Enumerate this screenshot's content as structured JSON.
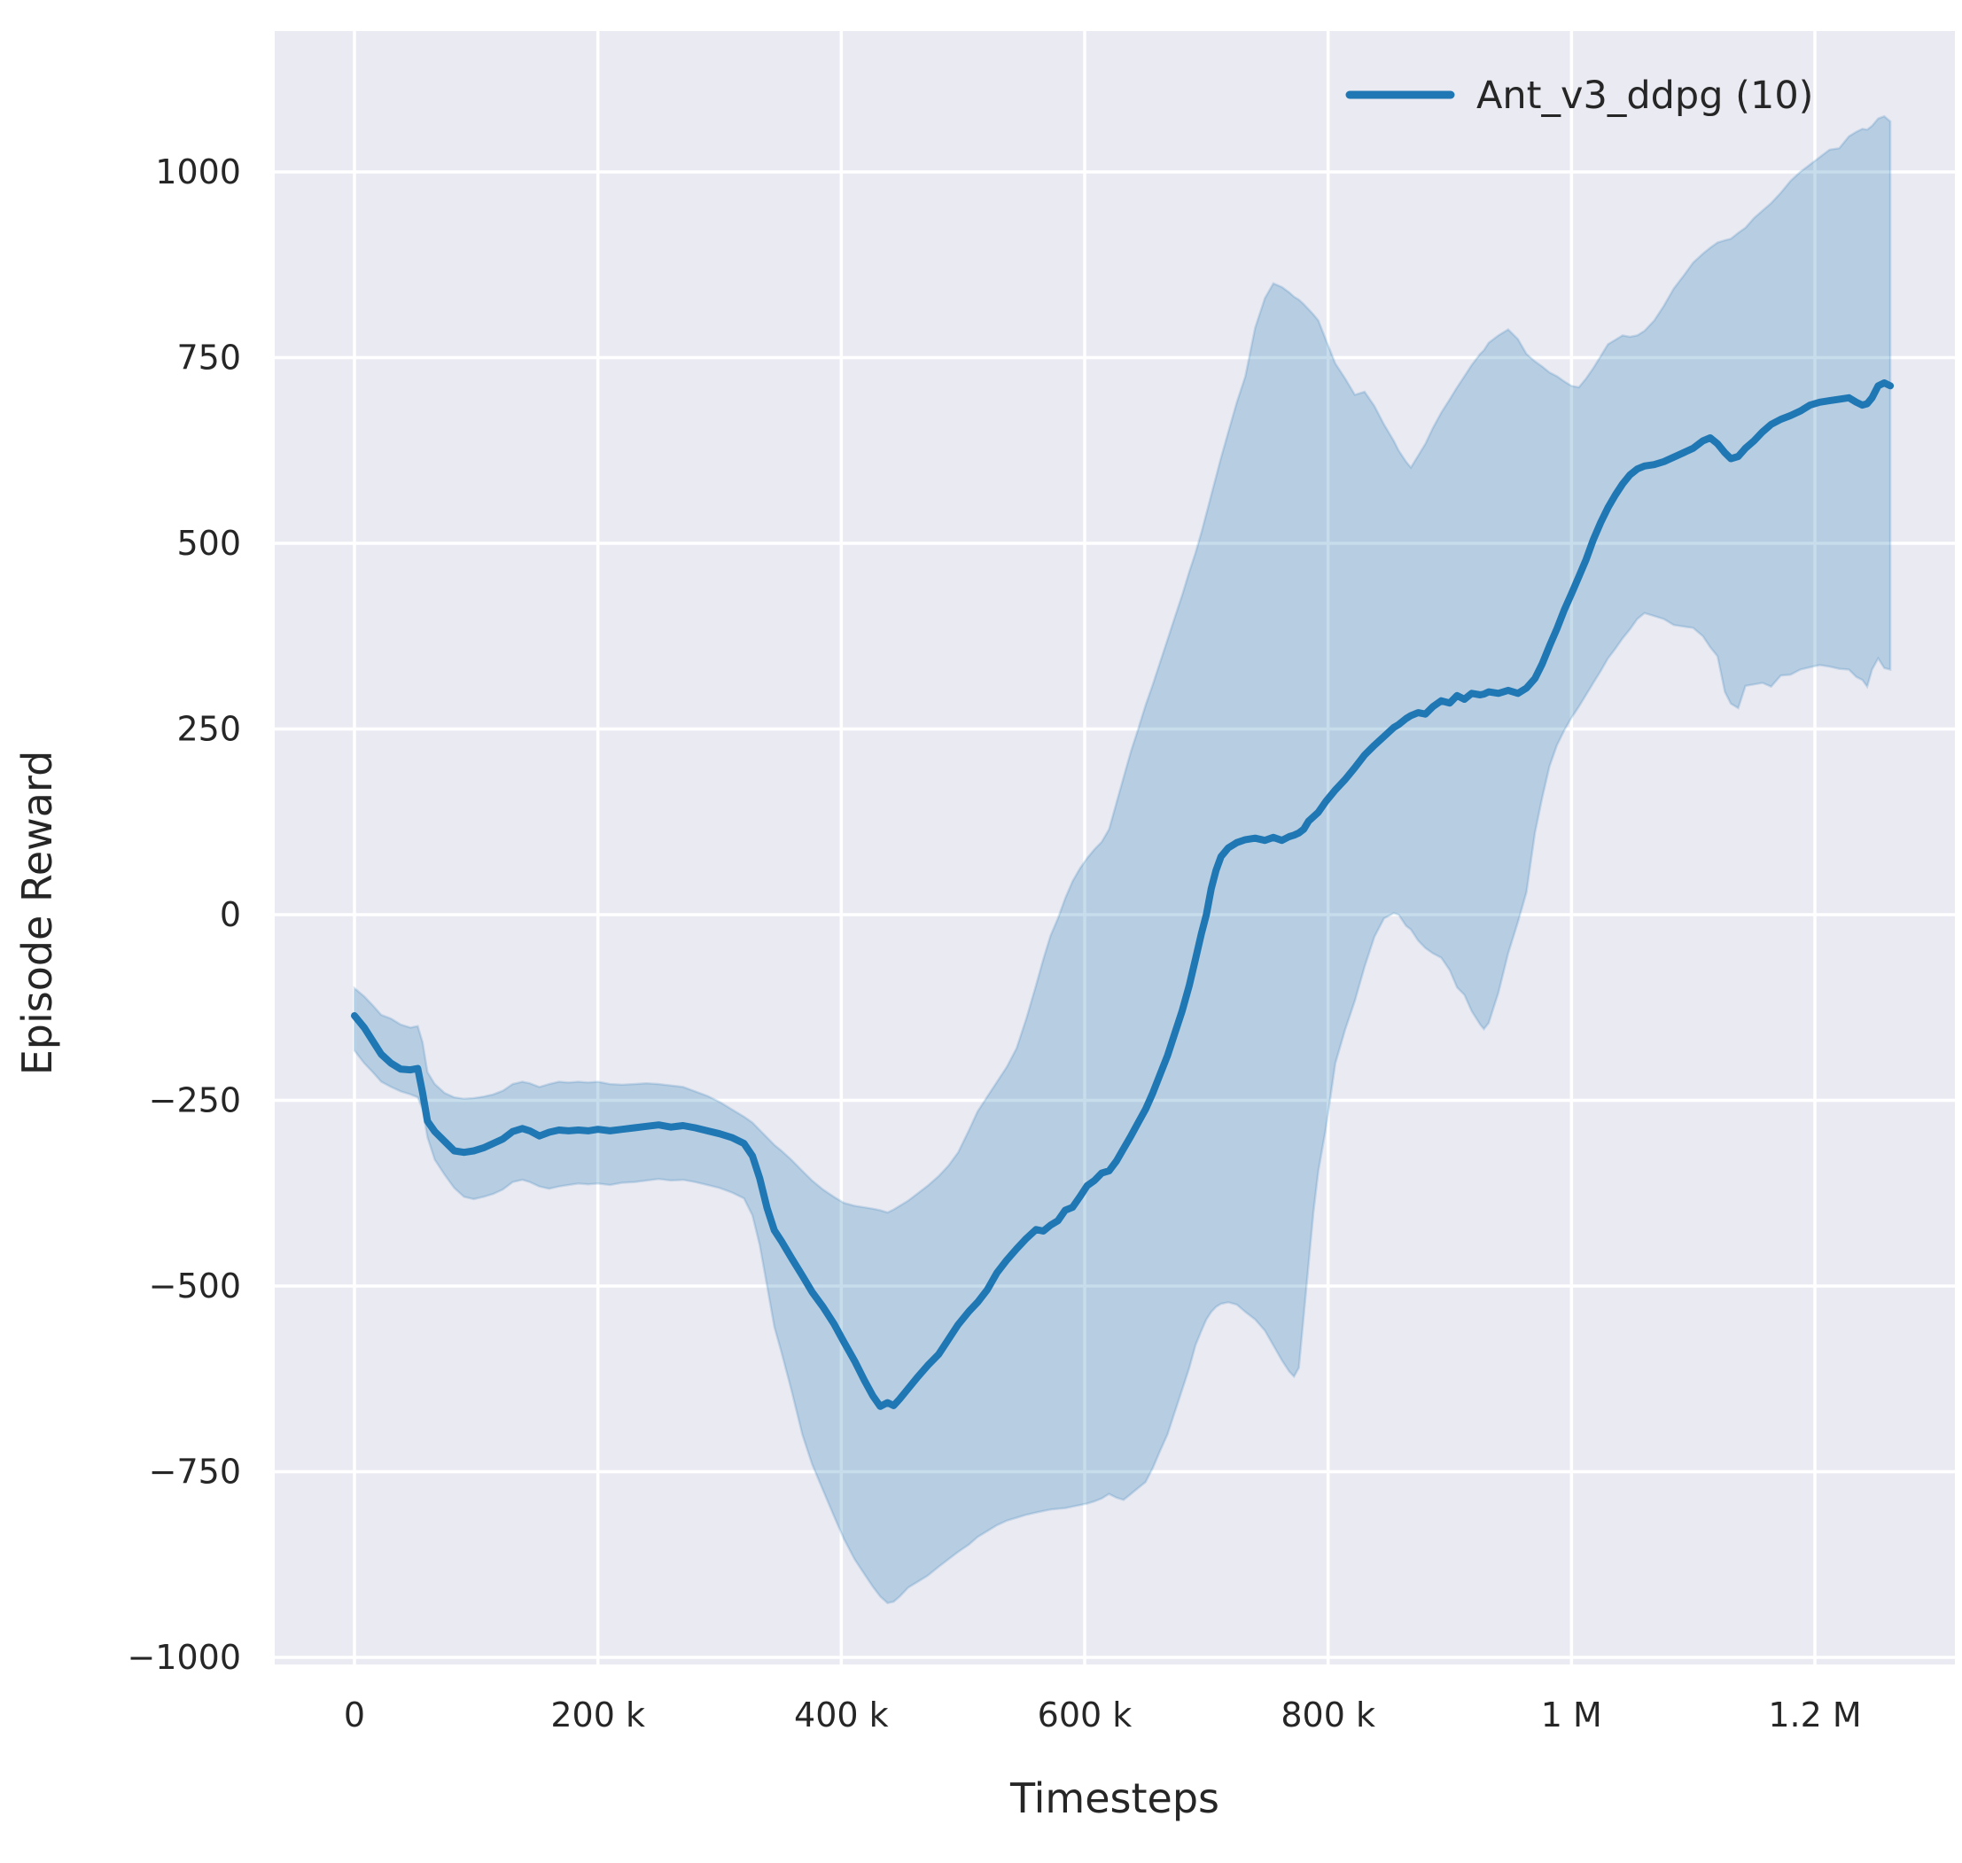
{
  "figure": {
    "kind": "matplotlib-seaborn line chart with confidence band",
    "background": "#ffffff"
  },
  "legend": {
    "position": "upper-right",
    "frame": false
  },
  "chart_data": {
    "type": "line",
    "title": "",
    "xlabel": "Timesteps",
    "ylabel": "Episode Reward",
    "grid": true,
    "legend_position": "upper right",
    "plot_background": "#eaeaf2",
    "grid_color": "#ffffff",
    "text_color": "#262626",
    "xlim_thousands": [
      -65,
      1315
    ],
    "ylim": [
      -1009,
      1190
    ],
    "x_ticks": {
      "values_thousands": [
        0,
        200,
        400,
        600,
        800,
        1000,
        1200
      ],
      "labels": [
        "0",
        "200 k",
        "400 k",
        "600 k",
        "800 k",
        "1 M",
        "1.2 M"
      ]
    },
    "y_ticks": {
      "values": [
        1000,
        750,
        500,
        250,
        0,
        -250,
        -500,
        -750,
        -1000
      ],
      "labels": [
        "1000",
        "750",
        "500",
        "250",
        "0",
        "−250",
        "−500",
        "−750",
        "−1000"
      ]
    },
    "series": [
      {
        "name": "Ant_v3_ddpg (10)",
        "color": "#1f77b4",
        "band_fill_opacity": 0.25,
        "x_unit": "thousand timesteps",
        "points_t_mean_lo_hi": [
          [
            0,
            -136,
            -183,
            -99
          ],
          [
            8,
            -152,
            -200,
            -110
          ],
          [
            15,
            -170,
            -212,
            -122
          ],
          [
            22,
            -188,
            -225,
            -135
          ],
          [
            30,
            -200,
            -232,
            -140
          ],
          [
            38,
            -208,
            -238,
            -148
          ],
          [
            46,
            -209,
            -242,
            -152
          ],
          [
            52,
            -207,
            -246,
            -150
          ],
          [
            56,
            -240,
            -262,
            -172
          ],
          [
            60,
            -278,
            -300,
            -212
          ],
          [
            66,
            -292,
            -330,
            -228
          ],
          [
            74,
            -305,
            -350,
            -240
          ],
          [
            82,
            -318,
            -368,
            -246
          ],
          [
            90,
            -320,
            -380,
            -248
          ],
          [
            98,
            -318,
            -383,
            -247
          ],
          [
            106,
            -314,
            -380,
            -245
          ],
          [
            114,
            -308,
            -376,
            -242
          ],
          [
            122,
            -302,
            -370,
            -237
          ],
          [
            130,
            -292,
            -360,
            -228
          ],
          [
            138,
            -288,
            -357,
            -225
          ],
          [
            144,
            -291,
            -360,
            -227
          ],
          [
            152,
            -298,
            -366,
            -232
          ],
          [
            160,
            -293,
            -369,
            -228
          ],
          [
            168,
            -290,
            -366,
            -225
          ],
          [
            176,
            -291,
            -364,
            -226
          ],
          [
            184,
            -290,
            -362,
            -225
          ],
          [
            192,
            -291,
            -363,
            -226
          ],
          [
            200,
            -289,
            -362,
            -225
          ],
          [
            210,
            -291,
            -364,
            -228
          ],
          [
            220,
            -289,
            -361,
            -229
          ],
          [
            230,
            -287,
            -360,
            -228
          ],
          [
            240,
            -285,
            -358,
            -227
          ],
          [
            250,
            -283,
            -356,
            -228
          ],
          [
            260,
            -286,
            -358,
            -230
          ],
          [
            270,
            -284,
            -357,
            -232
          ],
          [
            280,
            -287,
            -360,
            -238
          ],
          [
            290,
            -291,
            -364,
            -244
          ],
          [
            300,
            -295,
            -368,
            -252
          ],
          [
            310,
            -300,
            -374,
            -262
          ],
          [
            320,
            -308,
            -382,
            -272
          ],
          [
            327,
            -325,
            -405,
            -280
          ],
          [
            333,
            -355,
            -445,
            -290
          ],
          [
            339,
            -395,
            -500,
            -300
          ],
          [
            345,
            -425,
            -555,
            -310
          ],
          [
            351,
            -440,
            -590,
            -318
          ],
          [
            359,
            -462,
            -640,
            -330
          ],
          [
            368,
            -486,
            -700,
            -345
          ],
          [
            376,
            -508,
            -740,
            -358
          ],
          [
            385,
            -528,
            -775,
            -370
          ],
          [
            394,
            -551,
            -810,
            -380
          ],
          [
            402,
            -575,
            -840,
            -388
          ],
          [
            411,
            -601,
            -868,
            -392
          ],
          [
            419,
            -627,
            -888,
            -394
          ],
          [
            426,
            -648,
            -905,
            -396
          ],
          [
            432,
            -662,
            -918,
            -398
          ],
          [
            438,
            -657,
            -927,
            -401
          ],
          [
            443,
            -661,
            -925,
            -397
          ],
          [
            448,
            -652,
            -918,
            -392
          ],
          [
            455,
            -638,
            -906,
            -385
          ],
          [
            463,
            -622,
            -898,
            -375
          ],
          [
            471,
            -607,
            -890,
            -365
          ],
          [
            480,
            -592,
            -878,
            -352
          ],
          [
            488,
            -572,
            -868,
            -338
          ],
          [
            496,
            -552,
            -858,
            -320
          ],
          [
            505,
            -534,
            -848,
            -290
          ],
          [
            512,
            -522,
            -838,
            -265
          ],
          [
            520,
            -505,
            -830,
            -245
          ],
          [
            528,
            -482,
            -822,
            -225
          ],
          [
            536,
            -465,
            -816,
            -205
          ],
          [
            544,
            -450,
            -812,
            -180
          ],
          [
            552,
            -436,
            -808,
            -140
          ],
          [
            560,
            -424,
            -805,
            -95
          ],
          [
            566,
            -426,
            -803,
            -60
          ],
          [
            572,
            -418,
            -801,
            -28
          ],
          [
            578,
            -412,
            -800,
            -5
          ],
          [
            584,
            -398,
            -799,
            22
          ],
          [
            590,
            -394,
            -797,
            45
          ],
          [
            596,
            -380,
            -795,
            62
          ],
          [
            602,
            -365,
            -793,
            76
          ],
          [
            608,
            -358,
            -790,
            88
          ],
          [
            614,
            -348,
            -786,
            98
          ],
          [
            620,
            -345,
            -780,
            115
          ],
          [
            626,
            -332,
            -785,
            150
          ],
          [
            632,
            -315,
            -788,
            185
          ],
          [
            638,
            -298,
            -780,
            220
          ],
          [
            644,
            -280,
            -772,
            250
          ],
          [
            650,
            -262,
            -764,
            282
          ],
          [
            656,
            -240,
            -745,
            310
          ],
          [
            662,
            -215,
            -722,
            340
          ],
          [
            668,
            -190,
            -700,
            370
          ],
          [
            674,
            -160,
            -670,
            400
          ],
          [
            680,
            -130,
            -640,
            430
          ],
          [
            686,
            -95,
            -610,
            462
          ],
          [
            691,
            -60,
            -580,
            487
          ],
          [
            696,
            -25,
            -560,
            515
          ],
          [
            700,
            0,
            -545,
            540
          ],
          [
            704,
            35,
            -535,
            565
          ],
          [
            708,
            60,
            -528,
            590
          ],
          [
            712,
            78,
            -524,
            615
          ],
          [
            718,
            90,
            -522,
            650
          ],
          [
            725,
            97,
            -525,
            690
          ],
          [
            732,
            101,
            -535,
            725
          ],
          [
            740,
            103,
            -545,
            790
          ],
          [
            748,
            100,
            -560,
            830
          ],
          [
            755,
            104,
            -580,
            850
          ],
          [
            762,
            100,
            -600,
            845
          ],
          [
            768,
            105,
            -615,
            838
          ],
          [
            772,
            107,
            -622,
            832
          ],
          [
            776,
            110,
            -610,
            828
          ],
          [
            780,
            115,
            -540,
            822
          ],
          [
            784,
            126,
            -470,
            815
          ],
          [
            788,
            132,
            -400,
            808
          ],
          [
            792,
            138,
            -345,
            800
          ],
          [
            798,
            152,
            -290,
            775
          ],
          [
            806,
            168,
            -200,
            742
          ],
          [
            814,
            182,
            -155,
            722
          ],
          [
            822,
            198,
            -116,
            700
          ],
          [
            830,
            215,
            -70,
            704
          ],
          [
            838,
            228,
            -30,
            685
          ],
          [
            846,
            240,
            -5,
            660
          ],
          [
            854,
            252,
            2,
            638
          ],
          [
            858,
            256,
            0,
            625
          ],
          [
            864,
            264,
            -15,
            610
          ],
          [
            868,
            268,
            -20,
            602
          ],
          [
            874,
            272,
            -35,
            618
          ],
          [
            880,
            270,
            -45,
            634
          ],
          [
            886,
            280,
            -52,
            655
          ],
          [
            893,
            288,
            -58,
            676
          ],
          [
            900,
            285,
            -75,
            694
          ],
          [
            906,
            295,
            -98,
            710
          ],
          [
            912,
            290,
            -108,
            725
          ],
          [
            918,
            298,
            -130,
            740
          ],
          [
            925,
            296,
            -148,
            755
          ],
          [
            928,
            297,
            -154,
            760
          ],
          [
            932,
            300,
            -146,
            770
          ],
          [
            940,
            298,
            -105,
            780
          ],
          [
            948,
            302,
            -52,
            788
          ],
          [
            956,
            298,
            -10,
            775
          ],
          [
            963,
            305,
            30,
            755
          ],
          [
            970,
            318,
            110,
            745
          ],
          [
            976,
            338,
            158,
            738
          ],
          [
            982,
            362,
            200,
            730
          ],
          [
            988,
            385,
            228,
            725
          ],
          [
            994,
            410,
            248,
            718
          ],
          [
            1000,
            432,
            265,
            712
          ],
          [
            1006,
            455,
            280,
            710
          ],
          [
            1012,
            478,
            296,
            722
          ],
          [
            1018,
            505,
            312,
            736
          ],
          [
            1024,
            528,
            328,
            752
          ],
          [
            1030,
            548,
            345,
            768
          ],
          [
            1036,
            565,
            358,
            774
          ],
          [
            1042,
            580,
            372,
            780
          ],
          [
            1048,
            592,
            384,
            778
          ],
          [
            1054,
            600,
            398,
            780
          ],
          [
            1060,
            604,
            406,
            786
          ],
          [
            1068,
            606,
            402,
            800
          ],
          [
            1076,
            610,
            398,
            820
          ],
          [
            1084,
            616,
            390,
            843
          ],
          [
            1092,
            622,
            388,
            860
          ],
          [
            1100,
            628,
            386,
            878
          ],
          [
            1108,
            638,
            375,
            890
          ],
          [
            1114,
            642,
            360,
            898
          ],
          [
            1120,
            634,
            348,
            905
          ],
          [
            1126,
            622,
            300,
            908
          ],
          [
            1131,
            614,
            284,
            910
          ],
          [
            1137,
            617,
            278,
            918
          ],
          [
            1143,
            628,
            308,
            925
          ],
          [
            1150,
            638,
            310,
            938
          ],
          [
            1157,
            650,
            312,
            948
          ],
          [
            1164,
            660,
            307,
            958
          ],
          [
            1172,
            667,
            322,
            972
          ],
          [
            1180,
            672,
            323,
            988
          ],
          [
            1188,
            678,
            330,
            1000
          ],
          [
            1196,
            686,
            333,
            1010
          ],
          [
            1204,
            690,
            336,
            1020
          ],
          [
            1212,
            692,
            334,
            1030
          ],
          [
            1220,
            694,
            331,
            1032
          ],
          [
            1228,
            696,
            330,
            1048
          ],
          [
            1234,
            690,
            320,
            1054
          ],
          [
            1239,
            686,
            316,
            1058
          ],
          [
            1243,
            688,
            307,
            1057
          ],
          [
            1247,
            696,
            330,
            1062
          ],
          [
            1252,
            712,
            345,
            1072
          ],
          [
            1257,
            716,
            332,
            1075
          ],
          [
            1262,
            712,
            330,
            1068
          ]
        ]
      }
    ]
  }
}
